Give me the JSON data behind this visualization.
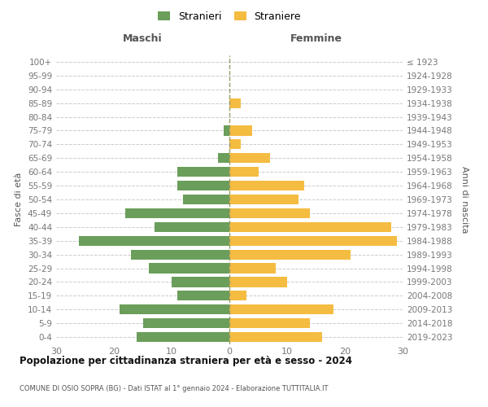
{
  "age_groups": [
    "0-4",
    "5-9",
    "10-14",
    "15-19",
    "20-24",
    "25-29",
    "30-34",
    "35-39",
    "40-44",
    "45-49",
    "50-54",
    "55-59",
    "60-64",
    "65-69",
    "70-74",
    "75-79",
    "80-84",
    "85-89",
    "90-94",
    "95-99",
    "100+"
  ],
  "birth_years": [
    "2019-2023",
    "2014-2018",
    "2009-2013",
    "2004-2008",
    "1999-2003",
    "1994-1998",
    "1989-1993",
    "1984-1988",
    "1979-1983",
    "1974-1978",
    "1969-1973",
    "1964-1968",
    "1959-1963",
    "1954-1958",
    "1949-1953",
    "1944-1948",
    "1939-1943",
    "1934-1938",
    "1929-1933",
    "1924-1928",
    "≤ 1923"
  ],
  "maschi": [
    16,
    15,
    19,
    9,
    10,
    14,
    17,
    26,
    13,
    18,
    8,
    9,
    9,
    2,
    0,
    1,
    0,
    0,
    0,
    0,
    0
  ],
  "femmine": [
    16,
    14,
    18,
    3,
    10,
    8,
    21,
    29,
    28,
    14,
    12,
    13,
    5,
    7,
    2,
    4,
    0,
    2,
    0,
    0,
    0
  ],
  "color_maschi": "#6a9e5a",
  "color_femmine": "#f5bc42",
  "title_main": "Popolazione per cittadinanza straniera per età e sesso - 2024",
  "title_sub": "COMUNE DI OSIO SOPRA (BG) - Dati ISTAT al 1° gennaio 2024 - Elaborazione TUTTITALIA.IT",
  "label_maschi": "Maschi",
  "label_femmine": "Femmine",
  "ylabel_left": "Fasce di età",
  "ylabel_right": "Anni di nascita",
  "legend_maschi": "Stranieri",
  "legend_femmine": "Straniere",
  "xlim": 30,
  "background_color": "#ffffff"
}
